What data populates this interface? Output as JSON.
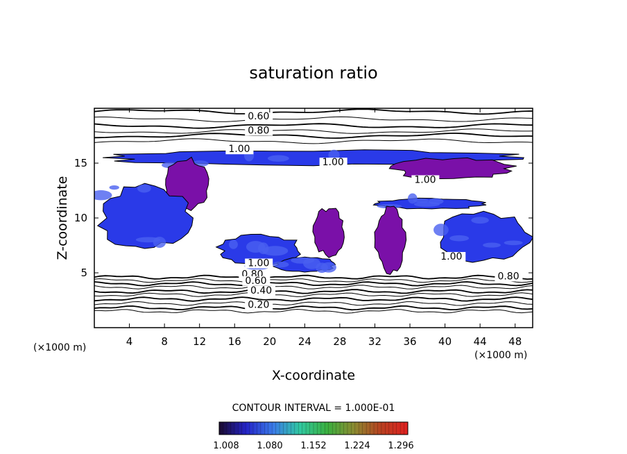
{
  "chart_data": {
    "type": "heatmap",
    "title": "saturation ratio",
    "xlabel": "X-coordinate",
    "ylabel": "Z-coordinate",
    "x_unit": "(×1000 m)",
    "y_unit": "(×1000 m)",
    "xlim": [
      0,
      50
    ],
    "ylim": [
      0,
      20
    ],
    "xticks": [
      4,
      8,
      12,
      16,
      20,
      24,
      28,
      32,
      36,
      40,
      44,
      48
    ],
    "yticks": [
      5,
      10,
      15
    ],
    "contour_interval_text": "CONTOUR INTERVAL = 1.000E-01",
    "colorbar": {
      "range": [
        1.008,
        1.3
      ],
      "tick_labels": [
        "1.008",
        "1.080",
        "1.152",
        "1.224",
        "1.296"
      ],
      "colors": [
        "#1a0a2e",
        "#2424c8",
        "#3a7ae8",
        "#30c8a0",
        "#3ab040",
        "#8a8a30",
        "#b84020",
        "#e02020"
      ]
    },
    "contour_labels": [
      {
        "text": "0.60",
        "x": 17.5,
        "z": 19.0
      },
      {
        "text": "0.80",
        "x": 17.5,
        "z": 17.7
      },
      {
        "text": "1.00",
        "x": 15.3,
        "z": 16.0
      },
      {
        "text": "1.00",
        "x": 26.0,
        "z": 14.8
      },
      {
        "text": "1.00",
        "x": 36.5,
        "z": 13.2
      },
      {
        "text": "1.00",
        "x": 17.5,
        "z": 5.6
      },
      {
        "text": "1.00",
        "x": 39.5,
        "z": 6.2
      },
      {
        "text": "0.80",
        "x": 16.8,
        "z": 4.6
      },
      {
        "text": "0.60",
        "x": 17.2,
        "z": 4.0
      },
      {
        "text": "0.40",
        "x": 17.8,
        "z": 3.1
      },
      {
        "text": "0.20",
        "x": 17.5,
        "z": 1.8
      },
      {
        "text": "0.80",
        "x": 46.0,
        "z": 4.4
      }
    ],
    "supersaturated_regions": [
      {
        "kind": "blue",
        "x": [
          0.2,
          49.8
        ],
        "z": [
          14.8,
          16.2
        ]
      },
      {
        "kind": "purple",
        "x": [
          8.0,
          13.0
        ],
        "z": [
          10.5,
          15.5
        ]
      },
      {
        "kind": "blue",
        "x": [
          0.5,
          11.0
        ],
        "z": [
          7.0,
          13.0
        ]
      },
      {
        "kind": "blue",
        "x": [
          14.0,
          24.0
        ],
        "z": [
          5.5,
          8.5
        ]
      },
      {
        "kind": "purple",
        "x": [
          25.0,
          28.5
        ],
        "z": [
          6.5,
          11.0
        ]
      },
      {
        "kind": "blue",
        "x": [
          32.0,
          45.0
        ],
        "z": [
          10.8,
          11.8
        ]
      },
      {
        "kind": "purple",
        "x": [
          32.0,
          35.5
        ],
        "z": [
          5.0,
          11.0
        ]
      },
      {
        "kind": "blue",
        "x": [
          39.0,
          49.8
        ],
        "z": [
          6.0,
          10.5
        ]
      },
      {
        "kind": "purple",
        "x": [
          34.0,
          48.0
        ],
        "z": [
          13.5,
          15.5
        ]
      },
      {
        "kind": "blue",
        "x": [
          20.5,
          27.5
        ],
        "z": [
          5.0,
          6.5
        ]
      }
    ]
  }
}
